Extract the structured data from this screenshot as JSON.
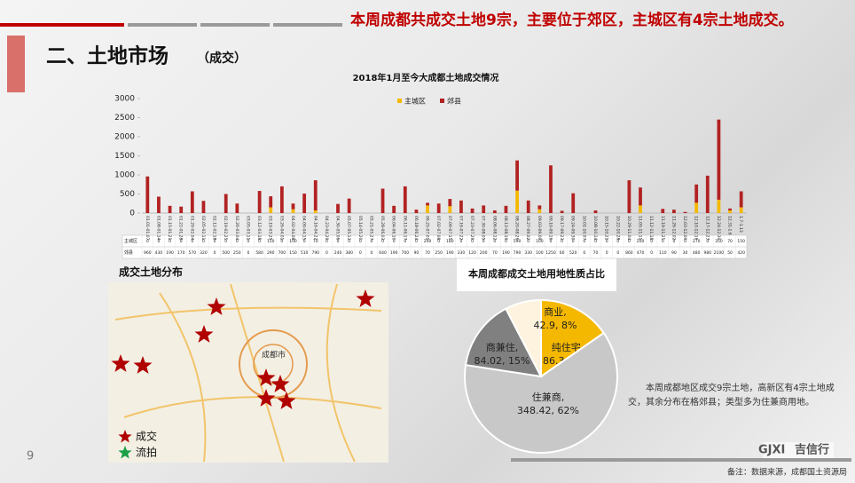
{
  "header": {
    "title": "二、土地市场",
    "subtitle": "（成交）",
    "headline": "本周成都共成交土地9宗，主要位于郊区，主城区有4宗土地成交。"
  },
  "map": {
    "title": "成交土地分布",
    "city": "成都市",
    "legend": [
      "成交",
      "流拍"
    ]
  },
  "note": "本周成都地区成交9宗土地，高新区有4宗土地成交，其余分布在格郊县；类型多为住兼商用地。",
  "page_number": "9",
  "logo": "吉信行",
  "footer": "备注：数据来源，成都国土资源局",
  "chart_data": [
    {
      "type": "bar",
      "stacked": true,
      "title": "2018年1月至今大成都土地成交情况",
      "categories": [
        "01.01-01.07",
        "01.08-01.14",
        "01.15-01.21",
        "01.22-01.28",
        "01.29-02.04",
        "02.05-02.11",
        "02.12-02.18",
        "02.19-02.25",
        "02.26-03.04",
        "03.05-03.11",
        "03.12-03.18",
        "03.19-03.25",
        "03.26-04.01",
        "04.02-04.08",
        "04.09-04.15",
        "04.16-04.22",
        "04.23-04.29",
        "04.30-05.06",
        "05.07-05.13",
        "05.14-05.20",
        "05.21-05.27",
        "05.28-06.03",
        "06.04-06.10",
        "06.11-06.17",
        "06.18-06.24",
        "06.25-07.01",
        "07.02-07.08",
        "07.09-07.15",
        "07.16-07.22",
        "07.23-07.29",
        "07.30-08.05",
        "08.06-08.12",
        "08.13-08.19",
        "08.20-08.26",
        "08.27-09.02",
        "09.03-09.09",
        "09.10-09.16",
        "09.17-09.23",
        "09.24-09.30",
        "10.01-10.07",
        "10.08-10.14",
        "10.15-10.21",
        "10.22-10.28",
        "10.29-11.04",
        "11.05-11.11",
        "11.12-11.18",
        "11.19-11.25",
        "11.26-12.02",
        "12.03-12.09",
        "12.10-12.16",
        "12.17-12.23",
        "12.24-12.30",
        "12.31-1.6",
        "1.7-1.13"
      ],
      "series": [
        {
          "name": "主城区",
          "color": "#f5b800",
          "values": [
            0,
            0,
            0,
            0,
            0,
            0,
            0,
            0,
            0,
            0,
            0,
            150,
            0,
            100,
            0,
            70,
            0,
            0,
            0,
            0,
            0,
            0,
            0,
            0,
            0,
            200,
            0,
            180,
            0,
            0,
            0,
            0,
            0,
            590,
            0,
            100,
            0,
            0,
            0,
            0,
            0,
            0,
            0,
            0,
            200,
            0,
            0,
            0,
            0,
            270,
            0,
            350,
            70,
            150
          ]
        },
        {
          "name": "郊县",
          "color": "#b22222",
          "values": [
            960,
            430,
            190,
            170,
            570,
            320,
            0,
            500,
            250,
            0,
            580,
            290,
            700,
            150,
            510,
            790,
            0,
            240,
            380,
            0,
            0,
            640,
            190,
            700,
            90,
            70,
            250,
            190,
            330,
            120,
            200,
            70,
            190,
            790,
            330,
            100,
            1250,
            60,
            520,
            0,
            70,
            0,
            0,
            860,
            470,
            0,
            110,
            90,
            30,
            480,
            980,
            2100,
            50,
            420
          ]
        }
      ],
      "ylim": [
        0,
        3000
      ],
      "yticks": [
        0,
        500,
        1000,
        1500,
        2000,
        2500,
        3000
      ],
      "legend": "top-right"
    },
    {
      "type": "pie",
      "title": "本周成都成交土地用地性质占比",
      "categories": [
        "纯住宅,",
        "住兼商,",
        "商兼住,",
        "商业,"
      ],
      "values": [
        86.3,
        348.42,
        84.02,
        42.9
      ],
      "value_labels": [
        "86.3, 15%",
        "348.42, 62%",
        "84.02, 15%",
        "42.9, 8%"
      ],
      "colors": [
        "#f5b800",
        "#c8c8c8",
        "#808080",
        "#fdf3de"
      ]
    }
  ]
}
